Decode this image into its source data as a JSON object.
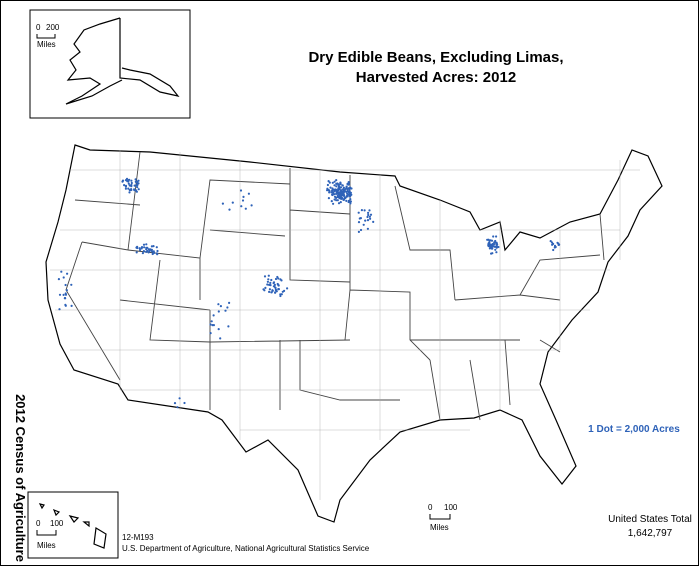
{
  "title": [
    "Dry Edible Beans, Excluding Limas,",
    "Harvested Acres:  2012"
  ],
  "side_label": "2012 Census of Agriculture",
  "legend": "1 Dot = 2,000 Acres",
  "total": {
    "label": "United States Total",
    "value": "1,642,797"
  },
  "footer": {
    "code": "12-M193",
    "source": "U.S. Department of Agriculture, National Agricultural Statistics Service"
  },
  "scales": [
    {
      "start": "0",
      "end": "200",
      "unit": "Miles"
    },
    {
      "start": "0",
      "end": "100",
      "unit": "Miles"
    },
    {
      "start": "0",
      "end": "100",
      "unit": "Miles"
    }
  ]
}
